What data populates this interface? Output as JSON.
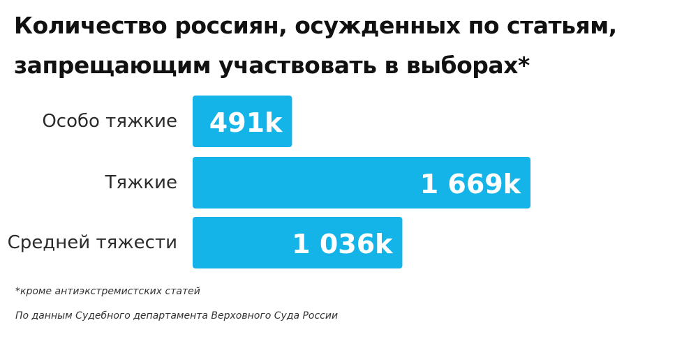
{
  "chart_data": {
    "type": "bar",
    "orientation": "horizontal",
    "title": "Количество россиян, осужденных по статьям, запрещающим участвовать в выборах*",
    "categories": [
      "Особо тяжкие",
      "Тяжкие",
      "Средней тяжести"
    ],
    "values": [
      491,
      1669,
      1036
    ],
    "value_labels": [
      "491k",
      "1 669k",
      "1 036k"
    ],
    "xlabel": "",
    "ylabel": "",
    "grid": false,
    "legend": "none",
    "bar_color": "#15b4e8",
    "label_color": "#ffffff"
  },
  "notes": {
    "footnote": "*кроме антиэкстремистских статей",
    "source": "По данным Судебного департамента Верховного Суда России"
  }
}
